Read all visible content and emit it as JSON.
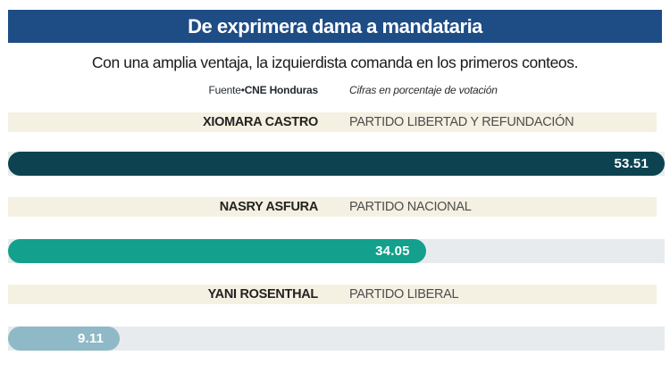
{
  "title": "De exprimera dama a mandataria",
  "subtitle": "Con una amplia ventaja, la izquierdista comanda en los primeros conteos.",
  "source": {
    "label_plain": "Fuente•",
    "label_bold": "CNE Honduras",
    "note": "Cifras en porcentaje de votación"
  },
  "colors": {
    "header_bg": "#1e4c85",
    "label_band_bg": "#f5f1e2",
    "bar_track": "#e8ebee",
    "bar_1": "#0d4350",
    "bar_2": "#13a08c",
    "bar_3": "#8fb9c6"
  },
  "chart_data": {
    "type": "bar",
    "orientation": "horizontal",
    "title": "De exprimera dama a mandataria",
    "subtitle": "Con una amplia ventaja, la izquierdista comanda en los primeros conteos.",
    "units": "porcentaje de votación",
    "scale_max": 53.51,
    "grid": false,
    "legend": false,
    "rows": [
      {
        "candidate": "XIOMARA CASTRO",
        "party": "PARTIDO LIBERTAD Y REFUNDACIÓN",
        "value": 53.51,
        "value_label": "53.51",
        "color": "#0d4350"
      },
      {
        "candidate": "NASRY ASFURA",
        "party": "PARTIDO NACIONAL",
        "value": 34.05,
        "value_label": "34.05",
        "color": "#13a08c"
      },
      {
        "candidate": "YANI ROSENTHAL",
        "party": "PARTIDO LIBERAL",
        "value": 9.11,
        "value_label": "9.11",
        "color": "#8fb9c6"
      }
    ]
  }
}
